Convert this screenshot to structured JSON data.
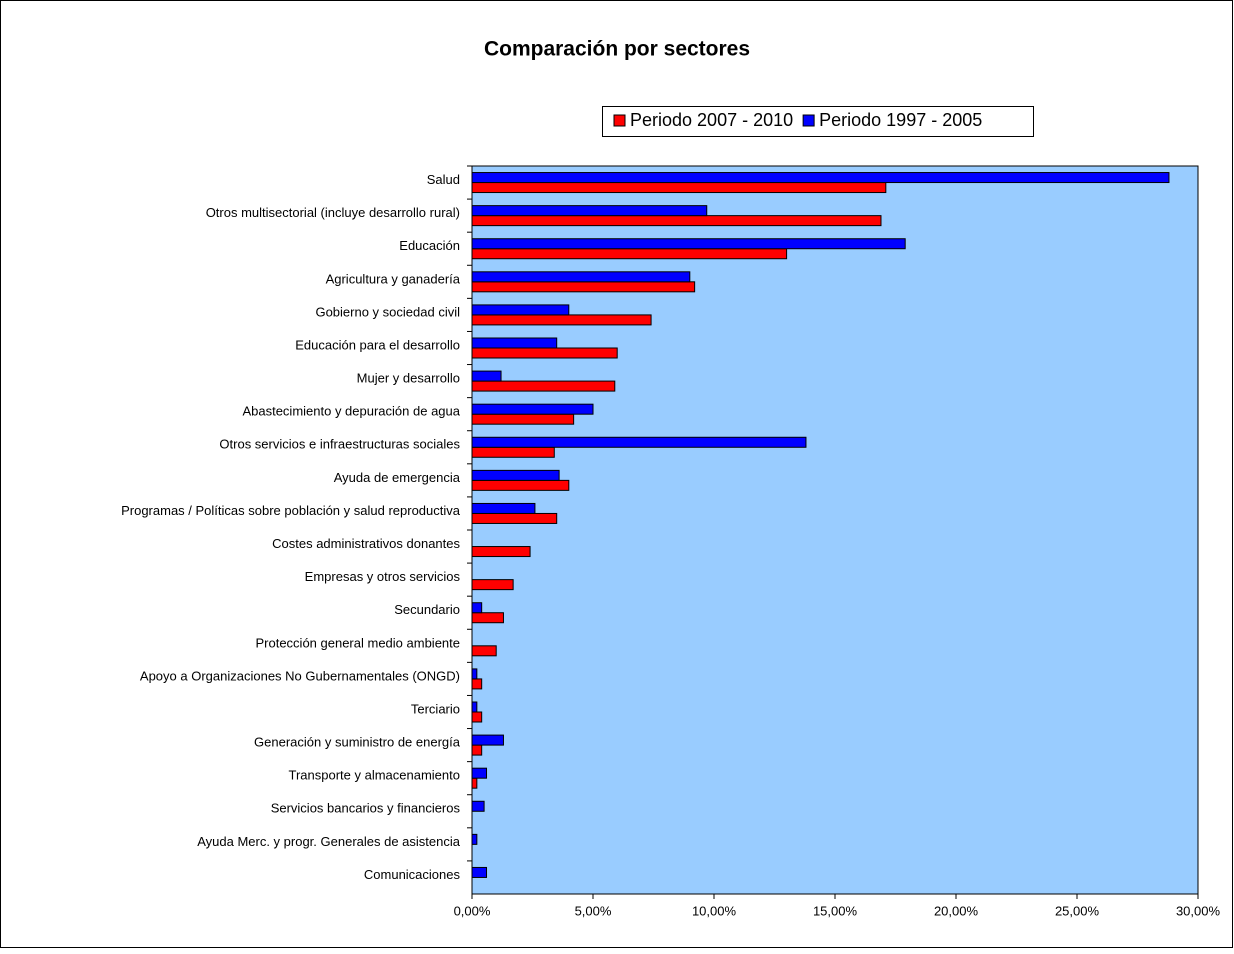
{
  "chart_data": {
    "type": "barh",
    "title": "Comparación por sectores",
    "categories": [
      "Salud",
      "Otros multisectorial (incluye desarrollo rural)",
      "Educación",
      "Agricultura y ganadería",
      "Gobierno y sociedad civil",
      "Educación para el desarrollo",
      "Mujer y desarrollo",
      "Abastecimiento y depuración de agua",
      "Otros servicios e infraestructuras sociales",
      "Ayuda de emergencia",
      "Programas / Políticas sobre población y salud reproductiva",
      "Costes administrativos donantes",
      "Empresas y otros servicios",
      "Secundario",
      "Protección general medio ambiente",
      "Apoyo a Organizaciones No Gubernamentales (ONGD)",
      "Terciario",
      "Generación y suministro de energía",
      "Transporte y almacenamiento",
      "Servicios bancarios y financieros",
      "Ayuda Merc. y progr. Generales de asistencia",
      "Comunicaciones"
    ],
    "series": [
      {
        "name": "Periodo 2007 - 2010",
        "color": "#ff0000",
        "values": [
          17.1,
          16.9,
          13.0,
          9.2,
          7.4,
          6.0,
          5.9,
          4.2,
          3.4,
          4.0,
          3.5,
          2.4,
          1.7,
          1.3,
          1.0,
          0.4,
          0.4,
          0.4,
          0.2,
          0,
          0,
          0
        ]
      },
      {
        "name": "Periodo 1997 - 2005",
        "color": "#0000ff",
        "values": [
          28.8,
          9.7,
          17.9,
          9.0,
          4.0,
          3.5,
          1.2,
          5.0,
          13.8,
          3.6,
          2.6,
          0,
          0,
          0.4,
          0,
          0.2,
          0.2,
          1.3,
          0.6,
          0.5,
          0.2,
          0.6
        ]
      }
    ],
    "xlim": [
      0,
      30
    ],
    "xticks": [
      {
        "value": 0,
        "label": "0,00%"
      },
      {
        "value": 5,
        "label": "5,00%"
      },
      {
        "value": 10,
        "label": "10,00%"
      },
      {
        "value": 15,
        "label": "15,00%"
      },
      {
        "value": 20,
        "label": "20,00%"
      },
      {
        "value": 25,
        "label": "25,00%"
      },
      {
        "value": 30,
        "label": "30,00%"
      }
    ],
    "plot_background": "#99ccff"
  }
}
